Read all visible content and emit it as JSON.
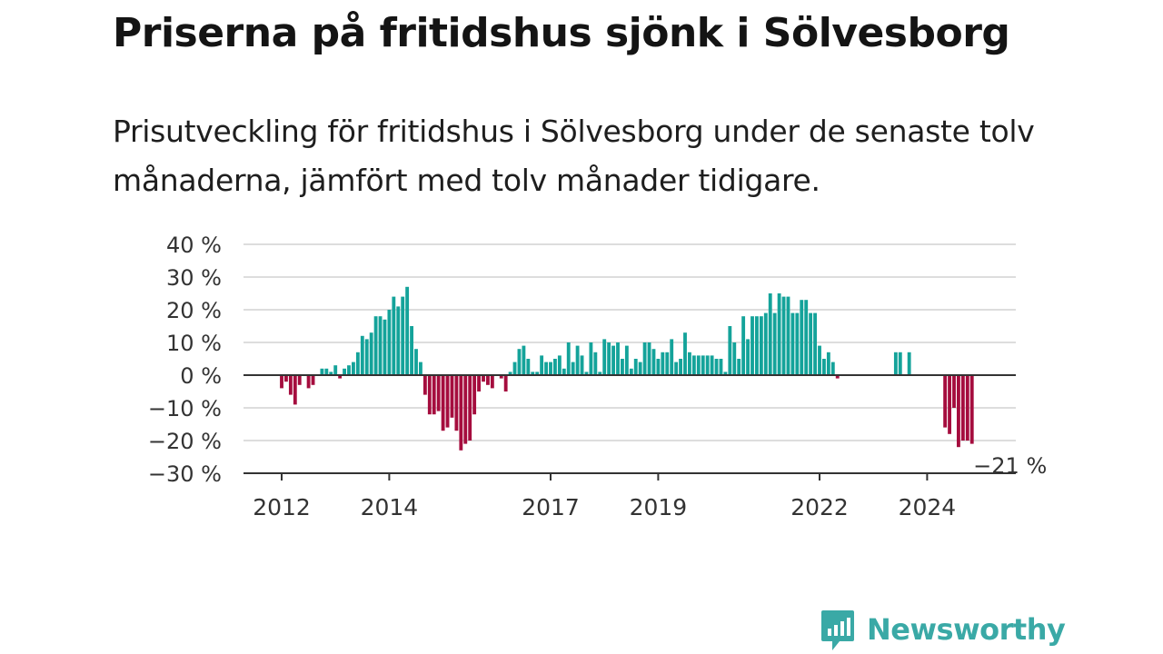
{
  "header": {
    "title": "Priserna på fritidshus sjönk i Sölvesborg",
    "subtitle": "Prisutveckling för fritidshus i Sölvesborg under de senaste tolv månaderna, jämfört med tolv månader tidigare."
  },
  "brand": {
    "name": "Newsworthy",
    "color": "#3aa9a6",
    "icon": "bar-chart-logo-icon"
  },
  "colors": {
    "positive": "#14a39a",
    "negative": "#a50d3e",
    "zero_line": "#333333",
    "grid": "#dddddd"
  },
  "chart_data": {
    "type": "bar",
    "start": "2012-01",
    "ylim": [
      -30,
      40
    ],
    "yticks": [
      -30,
      -20,
      -10,
      0,
      10,
      20,
      30,
      40
    ],
    "ytick_labels": [
      "−30 %",
      "−20 %",
      "−10 %",
      "0 %",
      "10 %",
      "20 %",
      "30 %",
      "40 %"
    ],
    "xticks": [
      "2012",
      "2014",
      "2017",
      "2019",
      "2022",
      "2024"
    ],
    "end_label": "−21 %",
    "values": [
      -4,
      -2,
      -6,
      -9,
      -3,
      null,
      -4,
      -3,
      null,
      2,
      2,
      1,
      3,
      -1,
      2,
      3,
      4,
      7,
      12,
      11,
      13,
      18,
      18,
      17,
      20,
      24,
      21,
      24,
      27,
      15,
      8,
      4,
      -6,
      -12,
      -12,
      -11,
      -17,
      -16,
      -13,
      -17,
      -23,
      -21,
      -20,
      -12,
      -5,
      -2,
      -3,
      -4,
      null,
      -1,
      -5,
      1,
      4,
      8,
      9,
      5,
      1,
      1,
      6,
      4,
      4,
      5,
      6,
      2,
      10,
      4,
      9,
      6,
      1,
      10,
      7,
      1,
      11,
      10,
      9,
      10,
      5,
      9,
      2,
      5,
      4,
      10,
      10,
      8,
      5,
      7,
      7,
      11,
      4,
      5,
      13,
      7,
      6,
      6,
      6,
      6,
      6,
      5,
      5,
      1,
      15,
      10,
      5,
      18,
      11,
      18,
      18,
      18,
      19,
      25,
      19,
      25,
      24,
      24,
      19,
      19,
      23,
      23,
      19,
      19,
      9,
      5,
      7,
      4,
      -1,
      null,
      null,
      null,
      null,
      null,
      null,
      null,
      null,
      null,
      null,
      null,
      null,
      7,
      7,
      null,
      7,
      null,
      null,
      null,
      null,
      null,
      null,
      null,
      -16,
      -18,
      -10,
      -22,
      -20,
      -20,
      -21
    ]
  }
}
